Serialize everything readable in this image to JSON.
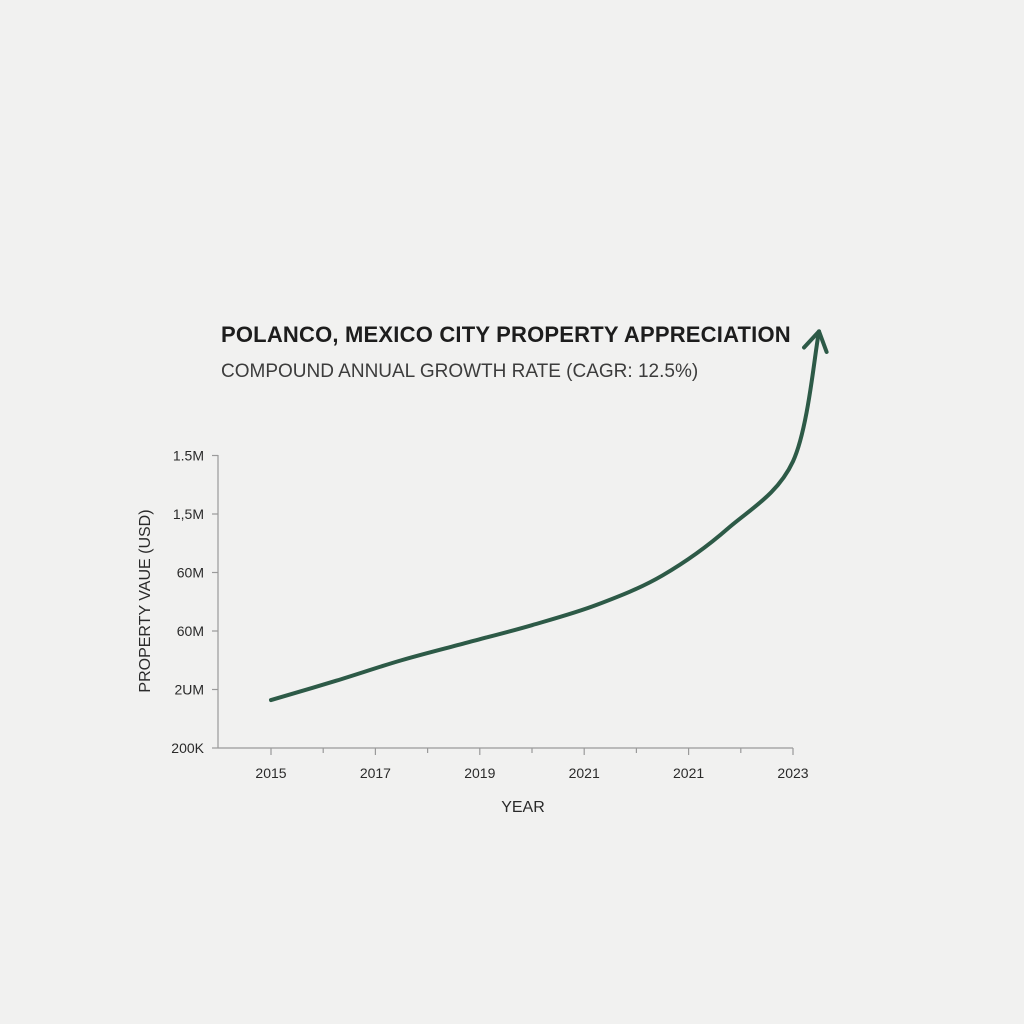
{
  "chart_data": {
    "type": "line",
    "title": "POLANCO, MEXICO CITY PROPERTY APPRECIATION",
    "subtitle": "COMPOUND ANNUAL GROWTH RATE (CAGR: 12.5%)",
    "xlabel": "YEAR",
    "ylabel": "PROPERTY VAUE (USD)",
    "x_tick_labels": [
      "2015",
      "2017",
      "2019",
      "2021",
      "2021",
      "2023"
    ],
    "y_tick_labels": [
      "200K",
      "2UM",
      "60M",
      "60M",
      "1,5M",
      "1.5M"
    ],
    "xlim": [
      2015,
      2023
    ],
    "y_axis_scale": "ordinal tick positions 0-5",
    "ylim": [
      0,
      5
    ],
    "series": [
      {
        "x": [
          2015,
          2016,
          2017,
          2018,
          2019,
          2020,
          2021,
          2022,
          2023
        ],
        "y": [
          0.82,
          1.15,
          1.5,
          1.8,
          2.1,
          2.45,
          2.95,
          3.75,
          4.9
        ],
        "end_marker": "arrow",
        "color": "#2d5a47"
      }
    ],
    "grid": false,
    "legend": "none"
  }
}
